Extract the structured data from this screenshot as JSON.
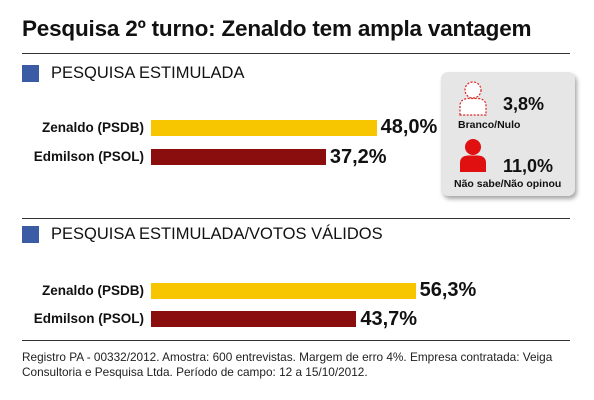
{
  "title": "Pesquisa 2º turno: Zenaldo tem ampla vantagem",
  "colors": {
    "section_square": "#3b5ba5",
    "zenaldo_bar": "#f7c600",
    "edmilson_bar": "#8b0e0e",
    "branco_icon": "#ffffff",
    "nao_sabe_icon": "#e01010",
    "box_bg": "#e6e6e6"
  },
  "icons": [
    "person-outline-icon",
    "person-filled-icon"
  ],
  "side_box": {
    "branco": {
      "value": "3,8%",
      "label": "Branco/Nulo"
    },
    "nao_sabe": {
      "value": "11,0%",
      "label": "Não sabe/Não opinou"
    }
  },
  "chart_data": [
    {
      "type": "bar",
      "orientation": "horizontal",
      "title": "PESQUISA ESTIMULADA",
      "categories": [
        "Zenaldo (PSDB)",
        "Edmilson (PSOL)"
      ],
      "values": [
        48.0,
        37.2
      ],
      "value_labels": [
        "48,0%",
        "37,2%"
      ],
      "unit": "%",
      "grid": false
    },
    {
      "type": "bar",
      "orientation": "horizontal",
      "title": "PESQUISA ESTIMULADA/VOTOS VÁLIDOS",
      "categories": [
        "Zenaldo (PSDB)",
        "Edmilson (PSOL)"
      ],
      "values": [
        56.3,
        43.7
      ],
      "value_labels": [
        "56,3%",
        "43,7%"
      ],
      "unit": "%",
      "grid": false
    }
  ],
  "footnote": "Registro PA - 00332/2012. Amostra: 600 entrevistas. Margem de erro 4%. Empresa contratada: Veiga Consultoria e Pesquisa Ltda. Período de campo: 12 a 15/10/2012."
}
